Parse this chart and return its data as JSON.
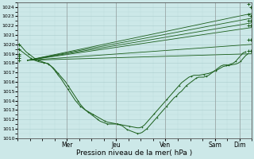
{
  "title": "",
  "xlabel": "Pression niveau de la mer( hPa )",
  "ylabel": "",
  "ylim": [
    1010,
    1024.5
  ],
  "ytick_min": 1010,
  "ytick_max": 1024,
  "background_color": "#cce8e8",
  "grid_major_color": "#aacccc",
  "grid_minor_color": "#bbdddd",
  "line_color": "#1a5e1a",
  "day_labels": [
    "Mer",
    "Jeu",
    "Ven",
    "Sam",
    "Dim"
  ],
  "day_positions": [
    2.0,
    4.0,
    6.0,
    8.0,
    9.0
  ],
  "xlim": [
    0.0,
    9.5
  ],
  "xlabel_fontsize": 6.5,
  "tick_fontsize": 5.0,
  "straight_lines": [
    [
      [
        0.4,
        1018.3
      ],
      [
        9.5,
        1023.3
      ]
    ],
    [
      [
        0.4,
        1018.3
      ],
      [
        9.5,
        1022.8
      ]
    ],
    [
      [
        0.4,
        1018.3
      ],
      [
        9.5,
        1022.3
      ]
    ],
    [
      [
        0.4,
        1018.3
      ],
      [
        9.5,
        1021.8
      ]
    ],
    [
      [
        0.4,
        1018.3
      ],
      [
        9.5,
        1020.0
      ]
    ],
    [
      [
        0.4,
        1018.3
      ],
      [
        9.5,
        1019.0
      ]
    ]
  ],
  "curved_line_main": [
    [
      0.05,
      1020.0
    ],
    [
      0.15,
      1019.8
    ],
    [
      0.25,
      1019.5
    ],
    [
      0.35,
      1019.2
    ],
    [
      0.45,
      1019.0
    ],
    [
      0.55,
      1018.8
    ],
    [
      0.65,
      1018.6
    ],
    [
      0.75,
      1018.4
    ],
    [
      0.85,
      1018.3
    ],
    [
      0.95,
      1018.2
    ],
    [
      1.05,
      1018.1
    ],
    [
      1.15,
      1018.0
    ],
    [
      1.25,
      1017.9
    ],
    [
      1.35,
      1017.7
    ],
    [
      1.45,
      1017.5
    ],
    [
      1.55,
      1017.2
    ],
    [
      1.65,
      1016.9
    ],
    [
      1.75,
      1016.6
    ],
    [
      1.85,
      1016.3
    ],
    [
      1.95,
      1016.0
    ],
    [
      2.05,
      1015.6
    ],
    [
      2.15,
      1015.2
    ],
    [
      2.25,
      1014.8
    ],
    [
      2.35,
      1014.4
    ],
    [
      2.45,
      1014.0
    ],
    [
      2.55,
      1013.6
    ],
    [
      2.65,
      1013.3
    ],
    [
      2.75,
      1013.0
    ],
    [
      2.85,
      1012.8
    ],
    [
      2.95,
      1012.6
    ],
    [
      3.05,
      1012.4
    ],
    [
      3.15,
      1012.2
    ],
    [
      3.25,
      1012.0
    ],
    [
      3.35,
      1011.8
    ],
    [
      3.45,
      1011.7
    ],
    [
      3.55,
      1011.6
    ],
    [
      3.65,
      1011.5
    ],
    [
      3.75,
      1011.5
    ],
    [
      3.85,
      1011.5
    ],
    [
      3.95,
      1011.5
    ],
    [
      4.05,
      1011.5
    ],
    [
      4.15,
      1011.4
    ],
    [
      4.25,
      1011.3
    ],
    [
      4.35,
      1011.1
    ],
    [
      4.45,
      1010.9
    ],
    [
      4.55,
      1010.8
    ],
    [
      4.65,
      1010.7
    ],
    [
      4.75,
      1010.6
    ],
    [
      4.85,
      1010.5
    ],
    [
      4.95,
      1010.5
    ],
    [
      5.05,
      1010.6
    ],
    [
      5.15,
      1010.8
    ],
    [
      5.25,
      1011.0
    ],
    [
      5.35,
      1011.3
    ],
    [
      5.45,
      1011.6
    ],
    [
      5.55,
      1011.9
    ],
    [
      5.65,
      1012.2
    ],
    [
      5.75,
      1012.5
    ],
    [
      5.85,
      1012.8
    ],
    [
      5.95,
      1013.1
    ],
    [
      6.05,
      1013.4
    ],
    [
      6.15,
      1013.7
    ],
    [
      6.25,
      1014.0
    ],
    [
      6.35,
      1014.3
    ],
    [
      6.45,
      1014.5
    ],
    [
      6.55,
      1014.8
    ],
    [
      6.65,
      1015.0
    ],
    [
      6.75,
      1015.3
    ],
    [
      6.85,
      1015.6
    ],
    [
      6.95,
      1015.8
    ],
    [
      7.05,
      1016.0
    ],
    [
      7.15,
      1016.2
    ],
    [
      7.25,
      1016.4
    ],
    [
      7.35,
      1016.5
    ],
    [
      7.45,
      1016.5
    ],
    [
      7.55,
      1016.5
    ],
    [
      7.65,
      1016.6
    ],
    [
      7.75,
      1016.7
    ],
    [
      7.85,
      1016.9
    ],
    [
      7.95,
      1017.1
    ],
    [
      8.05,
      1017.3
    ],
    [
      8.15,
      1017.5
    ],
    [
      8.25,
      1017.7
    ],
    [
      8.35,
      1017.8
    ],
    [
      8.45,
      1017.8
    ],
    [
      8.55,
      1017.8
    ],
    [
      8.65,
      1017.9
    ],
    [
      8.75,
      1018.0
    ],
    [
      8.85,
      1018.2
    ],
    [
      8.95,
      1018.5
    ],
    [
      9.05,
      1018.8
    ],
    [
      9.15,
      1019.1
    ],
    [
      9.25,
      1019.2
    ]
  ],
  "curved_line_secondary": [
    [
      0.05,
      1019.5
    ],
    [
      0.15,
      1019.3
    ],
    [
      0.25,
      1019.1
    ],
    [
      0.35,
      1018.9
    ],
    [
      0.45,
      1018.7
    ],
    [
      0.55,
      1018.5
    ],
    [
      0.65,
      1018.35
    ],
    [
      0.75,
      1018.25
    ],
    [
      0.85,
      1018.15
    ],
    [
      0.95,
      1018.1
    ],
    [
      1.05,
      1018.05
    ],
    [
      1.15,
      1018.0
    ],
    [
      1.25,
      1017.95
    ],
    [
      1.35,
      1017.7
    ],
    [
      1.45,
      1017.4
    ],
    [
      1.55,
      1017.1
    ],
    [
      1.65,
      1016.7
    ],
    [
      1.75,
      1016.4
    ],
    [
      1.85,
      1016.0
    ],
    [
      1.95,
      1015.6
    ],
    [
      2.05,
      1015.2
    ],
    [
      2.15,
      1014.8
    ],
    [
      2.25,
      1014.4
    ],
    [
      2.35,
      1014.0
    ],
    [
      2.45,
      1013.7
    ],
    [
      2.55,
      1013.4
    ],
    [
      2.65,
      1013.2
    ],
    [
      2.75,
      1013.0
    ],
    [
      2.85,
      1012.85
    ],
    [
      2.95,
      1012.7
    ],
    [
      3.05,
      1012.55
    ],
    [
      3.15,
      1012.4
    ],
    [
      3.25,
      1012.25
    ],
    [
      3.35,
      1012.1
    ],
    [
      3.45,
      1011.95
    ],
    [
      3.55,
      1011.8
    ],
    [
      3.65,
      1011.7
    ],
    [
      3.75,
      1011.65
    ],
    [
      3.85,
      1011.6
    ],
    [
      3.95,
      1011.55
    ],
    [
      4.05,
      1011.5
    ],
    [
      4.15,
      1011.45
    ],
    [
      4.25,
      1011.4
    ],
    [
      4.35,
      1011.35
    ],
    [
      4.45,
      1011.3
    ],
    [
      4.55,
      1011.25
    ],
    [
      4.65,
      1011.2
    ],
    [
      4.75,
      1011.15
    ],
    [
      4.85,
      1011.1
    ],
    [
      4.95,
      1011.1
    ],
    [
      5.05,
      1011.2
    ],
    [
      5.15,
      1011.4
    ],
    [
      5.25,
      1011.7
    ],
    [
      5.35,
      1012.0
    ],
    [
      5.45,
      1012.3
    ],
    [
      5.55,
      1012.6
    ],
    [
      5.65,
      1012.9
    ],
    [
      5.75,
      1013.2
    ],
    [
      5.85,
      1013.5
    ],
    [
      5.95,
      1013.8
    ],
    [
      6.05,
      1014.1
    ],
    [
      6.15,
      1014.4
    ],
    [
      6.25,
      1014.7
    ],
    [
      6.35,
      1015.0
    ],
    [
      6.45,
      1015.3
    ],
    [
      6.55,
      1015.6
    ],
    [
      6.65,
      1015.9
    ],
    [
      6.75,
      1016.1
    ],
    [
      6.85,
      1016.3
    ],
    [
      6.95,
      1016.5
    ],
    [
      7.05,
      1016.6
    ],
    [
      7.15,
      1016.7
    ],
    [
      7.25,
      1016.7
    ],
    [
      7.35,
      1016.7
    ],
    [
      7.45,
      1016.75
    ],
    [
      7.55,
      1016.8
    ],
    [
      7.65,
      1016.85
    ],
    [
      7.75,
      1016.9
    ],
    [
      7.85,
      1017.0
    ],
    [
      7.95,
      1017.1
    ],
    [
      8.05,
      1017.2
    ],
    [
      8.15,
      1017.35
    ],
    [
      8.25,
      1017.5
    ],
    [
      8.35,
      1017.65
    ],
    [
      8.45,
      1017.7
    ],
    [
      8.55,
      1017.75
    ],
    [
      8.65,
      1017.8
    ],
    [
      8.75,
      1017.85
    ],
    [
      8.85,
      1017.9
    ],
    [
      8.95,
      1018.0
    ],
    [
      9.05,
      1018.2
    ],
    [
      9.15,
      1018.5
    ],
    [
      9.25,
      1018.8
    ],
    [
      9.35,
      1019.0
    ]
  ],
  "end_cluster": [
    [
      9.35,
      1024.3
    ],
    [
      9.45,
      1024.0
    ],
    [
      9.35,
      1023.2
    ],
    [
      9.45,
      1023.0
    ],
    [
      9.35,
      1022.5
    ],
    [
      9.45,
      1022.5
    ],
    [
      9.35,
      1022.0
    ],
    [
      9.45,
      1022.0
    ],
    [
      9.35,
      1020.5
    ],
    [
      9.45,
      1020.5
    ],
    [
      9.35,
      1019.3
    ],
    [
      9.45,
      1019.3
    ]
  ],
  "start_cluster": [
    [
      0.05,
      1020.0
    ],
    [
      0.05,
      1019.5
    ],
    [
      0.05,
      1019.0
    ],
    [
      0.05,
      1018.8
    ],
    [
      0.05,
      1018.5
    ],
    [
      0.05,
      1018.3
    ]
  ]
}
